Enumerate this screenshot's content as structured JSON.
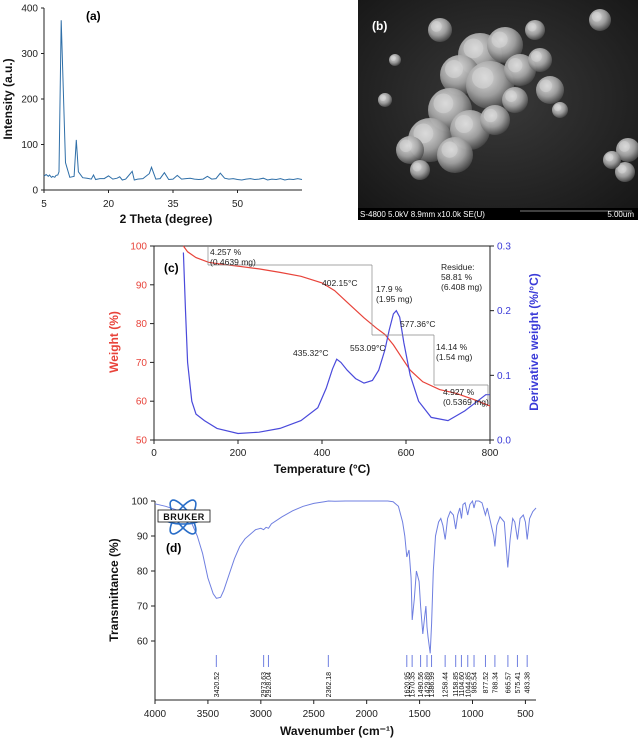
{
  "chart_data": [
    {
      "panel": "(a)",
      "type": "line",
      "xlabel": "2 Theta (degree)",
      "ylabel": "Intensity (a.u.)",
      "xlim": [
        5,
        65
      ],
      "ylim": [
        0,
        400
      ],
      "xticks": [
        5,
        20,
        35,
        50
      ],
      "yticks": [
        0,
        100,
        200,
        300,
        400
      ],
      "color": "#2f6fa8",
      "x": [
        5.0,
        5.5,
        6.0,
        6.3,
        6.6,
        6.8,
        7.0,
        7.5,
        7.8,
        8.2,
        8.5,
        9.0,
        10.0,
        11.0,
        12.0,
        12.5,
        13.0,
        14.0,
        15.0,
        16.0,
        16.5,
        17.0,
        18.0,
        19.0,
        20.0,
        21.0,
        22.0,
        22.6,
        23.2,
        24.0,
        25.5,
        26.0,
        26.8,
        28.0,
        29.5,
        30.0,
        31.0,
        32.0,
        33.0,
        34.0,
        35.0,
        36.0,
        37.0,
        38.0,
        39.0,
        40.0,
        41.0,
        42.0,
        43.0,
        44.0,
        45.0,
        46.0,
        47.0,
        48.0,
        49.0,
        50.0,
        51.0,
        52.0,
        53.0,
        54.0,
        55.0,
        56.0,
        57.0,
        58.0,
        59.0,
        60.0,
        61.0,
        62.0,
        63.0,
        64.0,
        65.0
      ],
      "y": [
        30,
        34,
        30,
        33,
        29,
        28,
        30,
        28,
        32,
        33,
        40,
        373,
        60,
        28,
        30,
        110,
        40,
        27,
        26,
        24,
        33,
        23,
        25,
        25,
        31,
        24,
        26,
        29,
        22,
        24,
        41,
        22,
        24,
        25,
        36,
        50,
        24,
        25,
        38,
        23,
        24,
        32,
        24,
        25,
        26,
        24,
        23,
        24,
        30,
        24,
        25,
        37,
        26,
        24,
        25,
        23,
        22,
        24,
        25,
        23,
        24,
        26,
        22,
        24,
        23,
        25,
        22,
        24,
        23,
        25,
        23
      ]
    },
    {
      "panel": "(c)",
      "type": "line",
      "xlabel": "Temperature (°C)",
      "ylabel": "Weight (%)",
      "y2label": "Derivative weight (%/°C)",
      "xlim": [
        0,
        800
      ],
      "ylim": [
        50,
        100
      ],
      "y2lim": [
        0,
        0.3
      ],
      "xticks": [
        0,
        200,
        400,
        600,
        800
      ],
      "yticks": [
        50,
        60,
        70,
        80,
        90,
        100
      ],
      "y2ticks": [
        0.0,
        0.1,
        0.2,
        0.3
      ],
      "series": [
        {
          "axis": "left",
          "color": "#e8433a",
          "x": [
            70,
            80,
            100,
            130,
            160,
            200,
            250,
            300,
            350,
            400,
            430,
            460,
            500,
            530,
            550,
            570,
            590,
            610,
            640,
            680,
            720,
            760,
            800
          ],
          "values": [
            100,
            98.5,
            97,
            95.8,
            95.3,
            94.8,
            94.1,
            93.2,
            92.2,
            90.5,
            88.5,
            85.5,
            81.5,
            78.8,
            77.2,
            74.5,
            71.2,
            68.0,
            65.0,
            63.0,
            62.0,
            60.5,
            58.8
          ]
        },
        {
          "axis": "right",
          "color": "#4a4adb",
          "x": [
            70,
            75,
            80,
            90,
            100,
            120,
            150,
            200,
            250,
            300,
            350,
            390,
            410,
            425,
            435,
            445,
            460,
            480,
            500,
            520,
            535,
            550,
            560,
            570,
            577,
            585,
            595,
            610,
            630,
            660,
            700,
            740,
            770,
            790,
            800
          ],
          "values": [
            0.29,
            0.2,
            0.12,
            0.06,
            0.04,
            0.03,
            0.018,
            0.01,
            0.012,
            0.018,
            0.03,
            0.05,
            0.08,
            0.11,
            0.125,
            0.12,
            0.108,
            0.095,
            0.088,
            0.092,
            0.108,
            0.14,
            0.17,
            0.195,
            0.2,
            0.19,
            0.15,
            0.1,
            0.06,
            0.035,
            0.03,
            0.045,
            0.06,
            0.07,
            0.07
          ]
        }
      ],
      "annotations": {
        "step1": [
          "4.257 %",
          "(0.4639 mg)"
        ],
        "step2": [
          "17.9 %",
          "(1.95 mg)"
        ],
        "step3": [
          "14.14 %",
          "(1.54 mg)"
        ],
        "step4": [
          "4.927 %",
          "(0.5369 mg)"
        ],
        "residue": [
          "Residue:",
          "58.81 %",
          "(6.408 mg)"
        ],
        "t1": "402.15°C",
        "t2": "435.32°C",
        "t3": "553.09°C",
        "t4": "577.36°C"
      }
    },
    {
      "panel": "(d)",
      "type": "line",
      "xlabel": "Wavenumber (cm⁻¹)",
      "ylabel": "Transmittance (%)",
      "xlim": [
        4000,
        400
      ],
      "ylim": [
        55,
        100
      ],
      "xticks": [
        4000,
        3500,
        3000,
        2500,
        2000,
        1500,
        1000,
        500
      ],
      "yticks": [
        60,
        70,
        80,
        90,
        100
      ],
      "color": "#6f7fe0",
      "x": [
        4000,
        3900,
        3800,
        3700,
        3650,
        3600,
        3550,
        3500,
        3450,
        3420,
        3380,
        3350,
        3300,
        3250,
        3200,
        3150,
        3100,
        3050,
        3000,
        2974,
        2950,
        2928,
        2900,
        2800,
        2700,
        2600,
        2500,
        2400,
        2362,
        2300,
        2200,
        2100,
        2000,
        1900,
        1800,
        1750,
        1700,
        1660,
        1640,
        1621,
        1600,
        1580,
        1570,
        1550,
        1530,
        1505,
        1490,
        1470,
        1455,
        1440,
        1430,
        1420,
        1400,
        1386,
        1370,
        1350,
        1320,
        1300,
        1280,
        1258,
        1235,
        1210,
        1180,
        1159,
        1140,
        1120,
        1104,
        1090,
        1070,
        1045,
        1025,
        1000,
        986,
        970,
        940,
        910,
        878,
        860,
        830,
        800,
        788,
        770,
        740,
        700,
        680,
        666,
        645,
        620,
        600,
        575,
        550,
        520,
        500,
        483,
        460,
        430,
        400
      ],
      "y": [
        99.2,
        98.5,
        97.5,
        95.5,
        93.5,
        90,
        85,
        78,
        73.5,
        72.2,
        72.5,
        74.5,
        79,
        83.5,
        87,
        89.2,
        90.5,
        91.8,
        92.2,
        91.8,
        92.5,
        92.2,
        93.5,
        95.5,
        97.2,
        98.5,
        99.3,
        99.8,
        100,
        99.9,
        100,
        100,
        100,
        100,
        100,
        99.8,
        98.5,
        94,
        90,
        84,
        86,
        78,
        66,
        72,
        80,
        77,
        70,
        62,
        66,
        70,
        64,
        61,
        56.5,
        65,
        80,
        90,
        94,
        95,
        93,
        89,
        95,
        97,
        96,
        92,
        96,
        98,
        95,
        99,
        99.5,
        96,
        99,
        100,
        98,
        100,
        100,
        99.5,
        96,
        98,
        94,
        90,
        87,
        93,
        95.5,
        94,
        86,
        81,
        89,
        95,
        94,
        89,
        95,
        96,
        94,
        89,
        95,
        97,
        98
      ],
      "peak_labels": [
        "3420.52",
        "2973.63",
        "2928.04",
        "2362.18",
        "1620.95",
        "1570.35",
        "1490.56",
        "1429.89",
        "1386.99",
        "1258.44",
        "1158.85",
        "1104.60",
        "1044.85",
        "985.54",
        "877.52",
        "788.34",
        "665.57",
        "575.41",
        "483.38"
      ],
      "peak_positions": [
        3420.52,
        2973.63,
        2928.04,
        2362.18,
        1620.95,
        1570.35,
        1490.56,
        1429.89,
        1386.99,
        1258.44,
        1158.85,
        1104.6,
        1044.85,
        985.54,
        877.52,
        788.34,
        665.57,
        575.41,
        483.38
      ],
      "logo_text": "BRUKER"
    }
  ],
  "panels": {
    "a": "(a)",
    "b": "(b)",
    "c": "(c)",
    "d": "(d)"
  },
  "sem": {
    "info": "S-4800 5.0kV 8.9mm x10.0k SE(U)",
    "scale": "5.00um"
  }
}
